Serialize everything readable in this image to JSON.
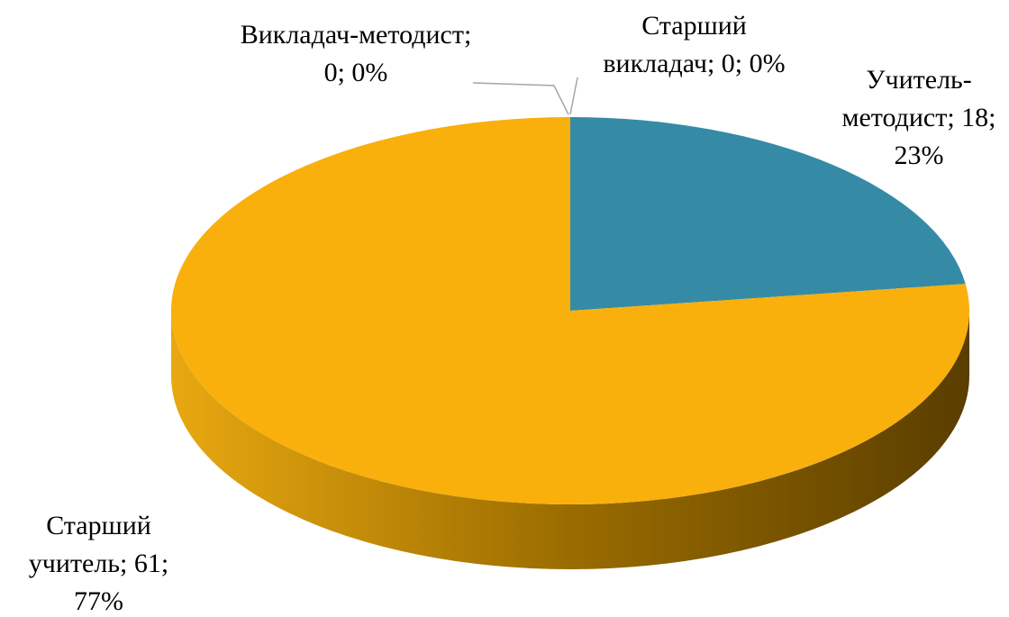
{
  "chart_data": {
    "type": "pie",
    "values": [
      0,
      0,
      18,
      61
    ],
    "value_labels": [
      "Викладач-методист; 0; 0%",
      "Старший викладач; 0; 0%",
      "Учитель-методист; 18; 23%",
      "Старший учитель; 61; 77%"
    ],
    "colors": [
      "#8a8a8a",
      "#c0504d",
      "#358ba5",
      "#f9b00c"
    ]
  }
}
